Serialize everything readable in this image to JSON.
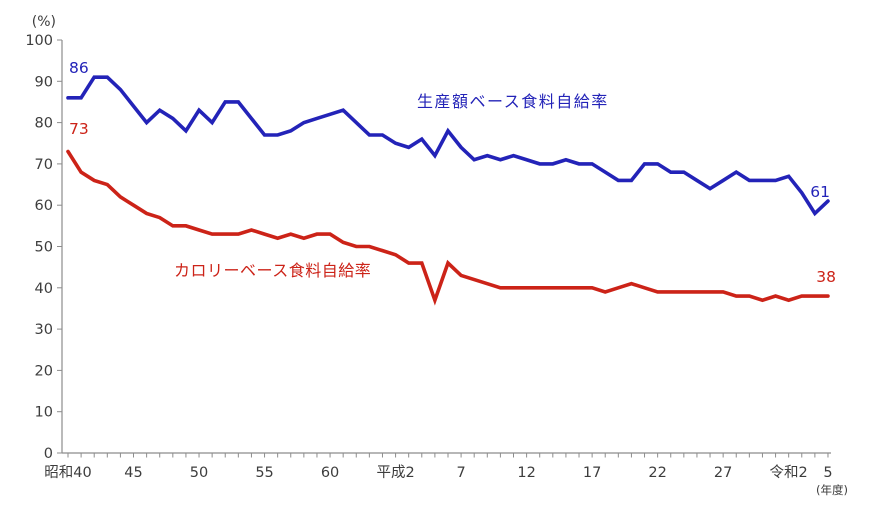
{
  "chart_data": {
    "type": "line",
    "title": "",
    "y_unit_label": "(%)",
    "x_unit_label": "(年度)",
    "ylim": [
      0,
      100
    ],
    "y_ticks": [
      0,
      10,
      20,
      30,
      40,
      50,
      60,
      70,
      80,
      90,
      100
    ],
    "grid": false,
    "legend_position": "inline-labels-on-plot",
    "axis_color": "#8c8c8c",
    "text_color": "#3d3d3d",
    "x_range_years": [
      1965,
      2023
    ],
    "x_tick_labels": [
      {
        "year": 1965,
        "label": "昭和40"
      },
      {
        "year": 1970,
        "label": "45"
      },
      {
        "year": 1975,
        "label": "50"
      },
      {
        "year": 1980,
        "label": "55"
      },
      {
        "year": 1985,
        "label": "60"
      },
      {
        "year": 1990,
        "label": "平成2"
      },
      {
        "year": 1995,
        "label": "7"
      },
      {
        "year": 2000,
        "label": "12"
      },
      {
        "year": 2005,
        "label": "17"
      },
      {
        "year": 2010,
        "label": "22"
      },
      {
        "year": 2015,
        "label": "27"
      },
      {
        "year": 2020,
        "label": "令和2"
      },
      {
        "year": 2023,
        "label": "5"
      }
    ],
    "years": [
      1965,
      1966,
      1967,
      1968,
      1969,
      1970,
      1971,
      1972,
      1973,
      1974,
      1975,
      1976,
      1977,
      1978,
      1979,
      1980,
      1981,
      1982,
      1983,
      1984,
      1985,
      1986,
      1987,
      1988,
      1989,
      1990,
      1991,
      1992,
      1993,
      1994,
      1995,
      1996,
      1997,
      1998,
      1999,
      2000,
      2001,
      2002,
      2003,
      2004,
      2005,
      2006,
      2007,
      2008,
      2009,
      2010,
      2011,
      2012,
      2013,
      2014,
      2015,
      2016,
      2017,
      2018,
      2019,
      2020,
      2021,
      2022,
      2023
    ],
    "series": [
      {
        "name": "生産額ベース食料自給率",
        "color": "#2323b8",
        "first_value_label": "86",
        "last_value_label": "61",
        "values": [
          86,
          86,
          91,
          91,
          88,
          84,
          80,
          83,
          81,
          78,
          83,
          80,
          85,
          85,
          81,
          77,
          77,
          78,
          80,
          81,
          82,
          83,
          80,
          77,
          77,
          75,
          74,
          76,
          72,
          78,
          74,
          71,
          72,
          71,
          72,
          71,
          70,
          70,
          71,
          70,
          70,
          68,
          66,
          66,
          70,
          70,
          68,
          68,
          66,
          64,
          66,
          68,
          66,
          66,
          66,
          67,
          63,
          58,
          61
        ]
      },
      {
        "name": "カロリーベース食料自給率",
        "color": "#cc2318",
        "first_value_label": "73",
        "last_value_label": "38",
        "values": [
          73,
          68,
          66,
          65,
          62,
          60,
          58,
          57,
          55,
          55,
          54,
          53,
          53,
          53,
          54,
          53,
          52,
          53,
          52,
          53,
          53,
          51,
          50,
          50,
          49,
          48,
          46,
          46,
          37,
          46,
          43,
          42,
          41,
          40,
          40,
          40,
          40,
          40,
          40,
          40,
          40,
          39,
          40,
          41,
          40,
          39,
          39,
          39,
          39,
          39,
          39,
          38,
          38,
          37,
          38,
          37,
          38,
          38,
          38
        ]
      }
    ]
  }
}
